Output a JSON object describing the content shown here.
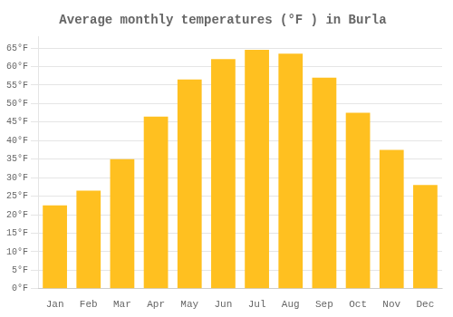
{
  "chart_data": {
    "type": "bar",
    "title": "Average monthly temperatures (°F ) in Burla",
    "categories": [
      "Jan",
      "Feb",
      "Mar",
      "Apr",
      "May",
      "Jun",
      "Jul",
      "Aug",
      "Sep",
      "Oct",
      "Nov",
      "Dec"
    ],
    "values": [
      22.5,
      26.5,
      35.0,
      46.5,
      56.5,
      62.0,
      64.5,
      63.5,
      57.0,
      47.5,
      37.5,
      28.0
    ],
    "color": "#FFC020",
    "ylim": [
      0,
      68
    ],
    "yticks": [
      {
        "value": 0,
        "label": "0°F"
      },
      {
        "value": 5,
        "label": "5°F"
      },
      {
        "value": 10,
        "label": "10°F"
      },
      {
        "value": 15,
        "label": "15°F"
      },
      {
        "value": 20,
        "label": "20°F"
      },
      {
        "value": 25,
        "label": "25°F"
      },
      {
        "value": 30,
        "label": "30°F"
      },
      {
        "value": 35,
        "label": "35°F"
      },
      {
        "value": 40,
        "label": "40°F"
      },
      {
        "value": 45,
        "label": "45°F"
      },
      {
        "value": 50,
        "label": "50°F"
      },
      {
        "value": 55,
        "label": "55°F"
      },
      {
        "value": 60,
        "label": "60°F"
      },
      {
        "value": 65,
        "label": "65°F"
      }
    ],
    "grid": true
  }
}
